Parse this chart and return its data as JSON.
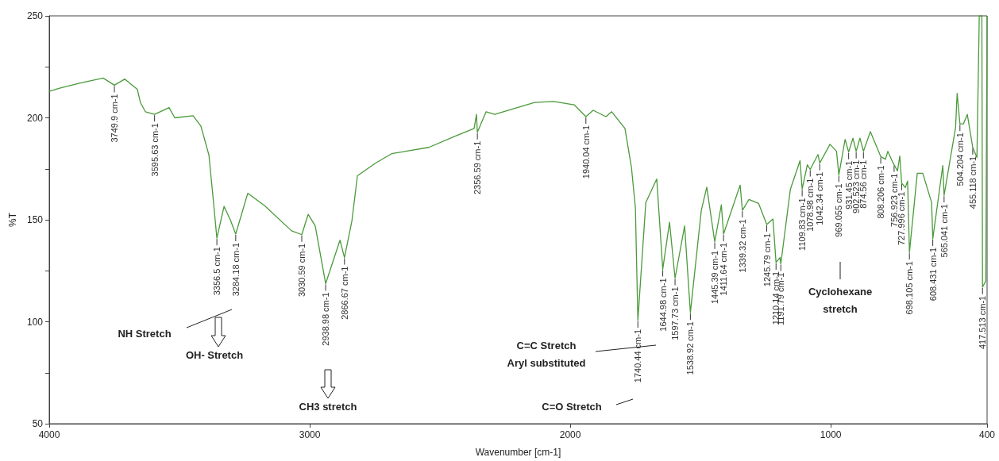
{
  "chart_data": {
    "type": "line",
    "xlabel": "Wavenumber [cm-1]",
    "ylabel": "%T",
    "xlim": [
      4000,
      400
    ],
    "xticks": [
      4000,
      3000,
      2000,
      1000,
      400
    ],
    "ylim": [
      50,
      250
    ],
    "yticks": [
      50,
      {
        "value": 75,
        "label": null
      },
      100,
      {
        "value": 125,
        "label": null
      },
      150,
      {
        "value": 175,
        "label": null
      },
      200,
      {
        "value": 225,
        "label": null
      },
      250
    ],
    "marker": "none",
    "line_style": "solid",
    "series": [
      {
        "color": "#4a9a3a",
        "x": [
          4000,
          3960,
          3884,
          3793,
          3749.9,
          3710,
          3662,
          3650,
          3631,
          3595.63,
          3540,
          3518,
          3448,
          3418,
          3387,
          3372,
          3356.5,
          3329,
          3305,
          3284.18,
          3238,
          3174,
          3070,
          3030.59,
          3006,
          2979,
          2938.98,
          2884,
          2866.67,
          2838,
          2817,
          2747,
          2686,
          2543,
          2442,
          2369,
          2360,
          2356.59,
          2323,
          2290,
          2137,
          2064,
          1985,
          1940.04,
          1912,
          1863,
          1841,
          1790,
          1765,
          1750,
          1740.44,
          1710,
          1668,
          1644.98,
          1619,
          1597.73,
          1561,
          1538.92,
          1497,
          1476,
          1445.39,
          1420,
          1411.64,
          1348,
          1339.32,
          1314,
          1277,
          1245.79,
          1222,
          1210.14,
          1195,
          1191.79,
          1155,
          1118,
          1109.83,
          1090,
          1078.98,
          1049,
          1042.34,
          1003,
          978,
          969.055,
          945,
          931.45,
          915,
          902.523,
          888,
          874.56,
          848,
          808.206,
          790,
          781,
          766,
          756.923,
          744,
          735,
          727.996,
          714,
          705,
          698.105,
          668,
          647,
          613,
          608.431,
          570,
          565.041,
          521,
          515,
          504.204,
          491,
          476,
          455.118,
          439,
          430,
          420,
          417.513,
          405,
          400
        ],
        "values": [
          213,
          214.5,
          217,
          219.5,
          216,
          219,
          214,
          207.5,
          203,
          201.7,
          205,
          200,
          201,
          196,
          181.7,
          162,
          141,
          156.6,
          150,
          143,
          163,
          157,
          144.6,
          142.7,
          152.7,
          147,
          118.7,
          140,
          131.5,
          149.6,
          171.6,
          177.8,
          182.4,
          185.5,
          191,
          194.8,
          201.7,
          192.9,
          203,
          201.7,
          207.5,
          208,
          206.4,
          200.6,
          203.7,
          200.6,
          203,
          194.8,
          175.5,
          156,
          100.6,
          158.5,
          170,
          125.7,
          148.8,
          121.4,
          147,
          104.4,
          154.6,
          166,
          139.2,
          157.3,
          143,
          167,
          154.6,
          160,
          158,
          147.7,
          150.4,
          129,
          131.5,
          128.4,
          165,
          179,
          165,
          177,
          174.7,
          182,
          177.8,
          187,
          183.6,
          172,
          189.4,
          183.2,
          190,
          183.6,
          190,
          183.6,
          193.2,
          181,
          179.7,
          183.6,
          179.3,
          177,
          174,
          181.3,
          168,
          165.8,
          169,
          134,
          172.8,
          172.8,
          158.5,
          140.7,
          176.6,
          162,
          195.2,
          212,
          197,
          197,
          201.7,
          185.5,
          180.5,
          250,
          250,
          117,
          120,
          250
        ]
      }
    ],
    "annotations": [
      {
        "text": "3749.9 cm-1",
        "x": 3749.9,
        "y": 216
      },
      {
        "text": "3595.63 cm-1",
        "x": 3595.63,
        "y": 201.7
      },
      {
        "text": "3356.5 cm-1",
        "x": 3356.5,
        "y": 141
      },
      {
        "text": "3284.18 cm-1",
        "x": 3284.18,
        "y": 143
      },
      {
        "text": "3030.59 cm-1",
        "x": 3030.59,
        "y": 142.7
      },
      {
        "text": "2938.98 cm-1",
        "x": 2938.98,
        "y": 118.7
      },
      {
        "text": "2866.67 cm-1",
        "x": 2866.67,
        "y": 131.5
      },
      {
        "text": "2356.59 cm-1",
        "x": 2356.59,
        "y": 192.9
      },
      {
        "text": "1940.04 cm-1",
        "x": 1940.04,
        "y": 200.6
      },
      {
        "text": "1740.44 cm-1",
        "x": 1740.44,
        "y": 100.6
      },
      {
        "text": "1644.98 cm-1",
        "x": 1644.98,
        "y": 125.7
      },
      {
        "text": "1597.73 cm-1",
        "x": 1597.73,
        "y": 121.4
      },
      {
        "text": "1538.92 cm-1",
        "x": 1538.92,
        "y": 104.4
      },
      {
        "text": "1445.39 cm-1",
        "x": 1445.39,
        "y": 139.2
      },
      {
        "text": "1411.64 cm-1",
        "x": 1411.64,
        "y": 143
      },
      {
        "text": "1339.32 cm-1",
        "x": 1339.32,
        "y": 154.6
      },
      {
        "text": "1245.79 cm-1",
        "x": 1245.79,
        "y": 147.7
      },
      {
        "text": "1210.14 cm-1",
        "x": 1210.14,
        "y": 129
      },
      {
        "text": "1191.79 cm-1",
        "x": 1191.79,
        "y": 128.4
      },
      {
        "text": "1109.83 cm-1",
        "x": 1109.83,
        "y": 165
      },
      {
        "text": "1078.98 cm-1",
        "x": 1078.98,
        "y": 174.7
      },
      {
        "text": "1042.34 cm-1",
        "x": 1042.34,
        "y": 177.8
      },
      {
        "text": "969.055 cm-1",
        "x": 969.055,
        "y": 172
      },
      {
        "text": "931.45 cm-1",
        "x": 931.45,
        "y": 183.2
      },
      {
        "text": "902.523 cm-1",
        "x": 902.523,
        "y": 183.6
      },
      {
        "text": "874.56 cm-1",
        "x": 874.56,
        "y": 183.6
      },
      {
        "text": "808.206 cm-1",
        "x": 808.206,
        "y": 181
      },
      {
        "text": "756.923 cm-1",
        "x": 756.923,
        "y": 177
      },
      {
        "text": "727.996 cm-1",
        "x": 727.996,
        "y": 168
      },
      {
        "text": "698.105 cm-1",
        "x": 698.105,
        "y": 134
      },
      {
        "text": "608.431 cm-1",
        "x": 608.431,
        "y": 140.7
      },
      {
        "text": "565.041 cm-1",
        "x": 565.041,
        "y": 162
      },
      {
        "text": "504.204 cm-1",
        "x": 504.204,
        "y": 197
      },
      {
        "text": "455.118 cm-1",
        "x": 455.118,
        "y": 185.5
      },
      {
        "text": "417.513 cm-1",
        "x": 417.513,
        "y": 117
      },
      "NH Stretch",
      "OH- Stretch",
      "CH3 stretch",
      "C=C Stretch\nAryl substituted",
      "C=O Stretch",
      "Cyclohexane\nstretch"
    ]
  }
}
